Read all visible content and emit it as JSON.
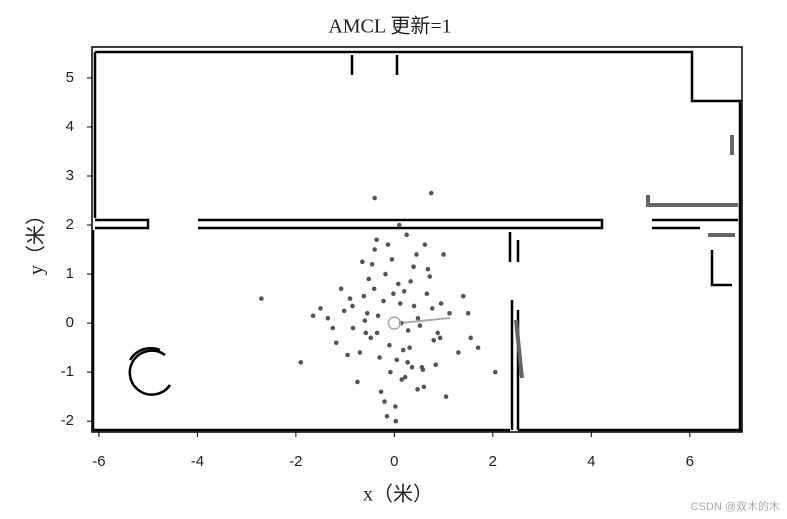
{
  "chart_data": {
    "type": "scatter",
    "title": "AMCL 更新=1",
    "x_label": "x（米）",
    "y_label": "y（米）",
    "watermark": "CSDN @双木的木",
    "xlim": [
      -6.14,
      7.06
    ],
    "ylim": [
      -2.22,
      5.63
    ],
    "xticks": [
      -6,
      -4,
      -2,
      0,
      2,
      4,
      6
    ],
    "yticks": [
      -2,
      -1,
      0,
      1,
      2,
      3,
      4,
      5
    ],
    "color": "#555555",
    "particles": {
      "x": [
        0.12,
        -0.35,
        0.48,
        -0.62,
        0.05,
        0.31,
        -0.18,
        0.77,
        -0.84,
        0.22,
        -0.05,
        0.56,
        -0.41,
        0.93,
        -1.02,
        0.14,
        -0.27,
        0.39,
        -0.7,
        0.66,
        1.12,
        -1.18,
        0.02,
        -0.13,
        0.28,
        -0.52,
        0.84,
        -0.33,
        0.45,
        -0.9,
        1.3,
        -1.35,
        0.08,
        0.6,
        -0.58,
        0.18,
        -0.08,
        0.72,
        -0.22,
        0.36,
        -1.5,
        1.55,
        -0.45,
        0.25,
        -0.15,
        0.95,
        -0.75,
        0.52,
        -0.02,
        1.05,
        -1.08,
        0.4,
        -0.3,
        0.15,
        0.68,
        -0.6,
        0.88,
        -0.95,
        0.1,
        -0.4,
        0.33,
        -0.2,
        1.4,
        -1.25,
        0.58,
        -0.65,
        0.2,
        -0.1,
        0.8,
        -0.85,
        0.47,
        -0.55,
        1.7,
        -1.65,
        0.03,
        0.62,
        -0.48,
        0.27,
        -0.36,
        1.0,
        -0.4,
        0.75,
        -2.7,
        1.5,
        2.05,
        -1.9
      ],
      "y": [
        0.4,
        -0.2,
        0.1,
        0.55,
        -0.75,
        -0.5,
        1.0,
        0.3,
        -0.1,
        -1.1,
        1.3,
        -0.9,
        0.7,
        -0.3,
        0.25,
        0.0,
        -1.4,
        1.15,
        -0.6,
        0.6,
        0.2,
        -0.4,
        -1.7,
        1.6,
        -0.15,
        0.9,
        -0.85,
        0.15,
        1.4,
        0.5,
        -0.6,
        0.1,
        0.8,
        -1.3,
        -0.2,
        -0.55,
        -1.0,
        0.95,
        0.45,
        -0.9,
        0.3,
        -0.3,
        1.2,
        1.8,
        -1.9,
        0.4,
        -1.2,
        -0.05,
        0.6,
        -1.5,
        0.7,
        0.35,
        -0.7,
        -1.15,
        1.1,
        0.05,
        -0.2,
        -0.65,
        2.0,
        1.5,
        0.85,
        -1.6,
        0.55,
        -0.1,
        -0.95,
        1.25,
        0.65,
        -0.45,
        -0.35,
        0.35,
        -1.35,
        0.2,
        -0.5,
        0.15,
        -2.0,
        1.6,
        -0.3,
        -0.8,
        1.7,
        1.4,
        2.55,
        2.65,
        0.5,
        0.2,
        -1.0,
        -0.8
      ]
    },
    "pose": {
      "x": 0,
      "y": 0
    }
  }
}
